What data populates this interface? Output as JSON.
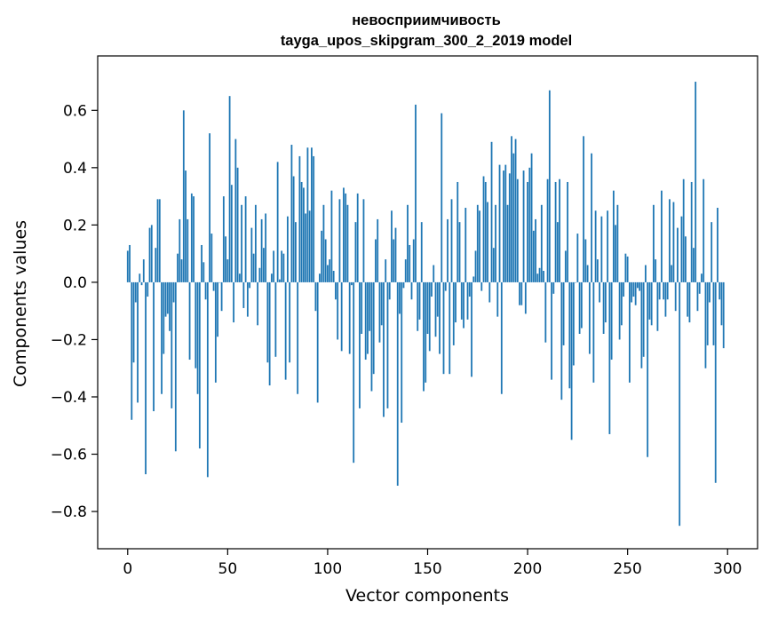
{
  "chart_data": {
    "type": "bar",
    "title_line1": "невосприимчивость",
    "title_line2": "tayga_upos_skipgram_300_2_2019 model",
    "xlabel": "Vector components",
    "ylabel": "Components values",
    "xlim": [
      -15,
      315
    ],
    "ylim": [
      -0.93,
      0.79
    ],
    "xticks": [
      0,
      50,
      100,
      150,
      200,
      250,
      300
    ],
    "xtick_labels": [
      "0",
      "50",
      "100",
      "150",
      "200",
      "250",
      "300"
    ],
    "yticks": [
      -0.8,
      -0.6,
      -0.4,
      -0.2,
      0.0,
      0.2,
      0.4,
      0.6
    ],
    "ytick_labels": [
      "−0.8",
      "−0.6",
      "−0.4",
      "−0.2",
      "0.0",
      "0.2",
      "0.4",
      "0.6"
    ],
    "bar_color": "#1f77b4",
    "values": [
      0.11,
      0.13,
      -0.48,
      -0.28,
      -0.07,
      -0.42,
      0.03,
      -0.01,
      0.08,
      -0.67,
      -0.05,
      0.19,
      0.2,
      -0.45,
      0.12,
      0.29,
      0.29,
      -0.39,
      -0.25,
      -0.12,
      -0.11,
      -0.17,
      -0.44,
      -0.07,
      -0.59,
      0.1,
      0.22,
      0.08,
      0.6,
      0.39,
      0.22,
      -0.27,
      0.31,
      0.3,
      -0.3,
      -0.39,
      -0.58,
      0.13,
      0.07,
      -0.06,
      -0.68,
      0.52,
      0.17,
      -0.03,
      -0.35,
      -0.19,
      0.0,
      -0.1,
      0.3,
      0.16,
      0.08,
      0.65,
      0.34,
      -0.14,
      0.5,
      0.4,
      0.03,
      0.27,
      -0.09,
      0.3,
      -0.12,
      -0.02,
      0.19,
      0.1,
      0.27,
      -0.15,
      0.05,
      0.22,
      0.12,
      0.24,
      -0.28,
      -0.36,
      0.03,
      0.11,
      -0.26,
      0.42,
      0.01,
      0.11,
      0.1,
      -0.34,
      0.23,
      -0.28,
      0.48,
      0.37,
      0.21,
      -0.39,
      0.44,
      0.35,
      0.33,
      0.24,
      0.47,
      0.25,
      0.47,
      0.44,
      -0.1,
      -0.42,
      0.03,
      0.18,
      0.27,
      0.15,
      0.06,
      0.08,
      0.32,
      0.04,
      -0.06,
      -0.2,
      0.29,
      -0.24,
      0.33,
      0.31,
      0.27,
      -0.25,
      -0.01,
      -0.63,
      0.21,
      0.31,
      -0.44,
      -0.18,
      0.29,
      -0.27,
      -0.25,
      -0.17,
      -0.38,
      -0.32,
      0.15,
      0.22,
      -0.21,
      -0.15,
      -0.47,
      0.08,
      -0.44,
      -0.06,
      0.25,
      0.15,
      0.19,
      -0.71,
      -0.11,
      -0.49,
      -0.02,
      0.08,
      0.27,
      0.13,
      -0.06,
      0.15,
      0.62,
      -0.17,
      -0.13,
      0.21,
      -0.38,
      -0.35,
      -0.18,
      -0.24,
      -0.05,
      0.06,
      -0.19,
      -0.12,
      -0.25,
      0.59,
      -0.32,
      -0.03,
      0.22,
      -0.32,
      0.29,
      -0.22,
      -0.14,
      0.35,
      0.21,
      -0.13,
      -0.16,
      0.26,
      -0.13,
      -0.05,
      -0.33,
      0.02,
      0.11,
      0.27,
      0.25,
      -0.03,
      0.37,
      0.35,
      0.28,
      -0.07,
      0.49,
      0.12,
      0.27,
      -0.12,
      0.41,
      -0.39,
      0.39,
      0.41,
      0.27,
      0.38,
      0.51,
      0.45,
      0.5,
      0.36,
      -0.08,
      -0.08,
      0.39,
      -0.11,
      0.35,
      0.4,
      0.45,
      0.18,
      0.22,
      0.03,
      0.05,
      0.27,
      0.04,
      -0.21,
      0.36,
      0.67,
      -0.34,
      -0.04,
      0.35,
      0.21,
      0.36,
      -0.41,
      -0.22,
      0.11,
      0.35,
      -0.37,
      -0.55,
      -0.29,
      0.0,
      0.17,
      -0.18,
      -0.16,
      0.51,
      0.15,
      0.06,
      -0.25,
      0.45,
      -0.35,
      0.25,
      0.08,
      -0.07,
      0.23,
      -0.18,
      -0.14,
      0.25,
      -0.53,
      -0.27,
      0.32,
      0.2,
      0.27,
      -0.2,
      -0.15,
      -0.05,
      0.1,
      0.09,
      -0.35,
      -0.07,
      -0.05,
      -0.08,
      -0.02,
      -0.03,
      -0.3,
      -0.26,
      0.06,
      -0.61,
      -0.13,
      -0.15,
      0.27,
      0.08,
      -0.17,
      -0.06,
      0.32,
      -0.06,
      -0.12,
      -0.06,
      0.29,
      0.06,
      0.28,
      -0.1,
      0.19,
      -0.85,
      0.23,
      0.36,
      0.16,
      -0.12,
      -0.14,
      0.35,
      0.12,
      0.7,
      -0.1,
      -0.04,
      0.03,
      0.36,
      -0.3,
      -0.22,
      -0.07,
      0.21,
      -0.22,
      -0.7,
      0.26,
      -0.06,
      -0.15,
      -0.23
    ]
  }
}
